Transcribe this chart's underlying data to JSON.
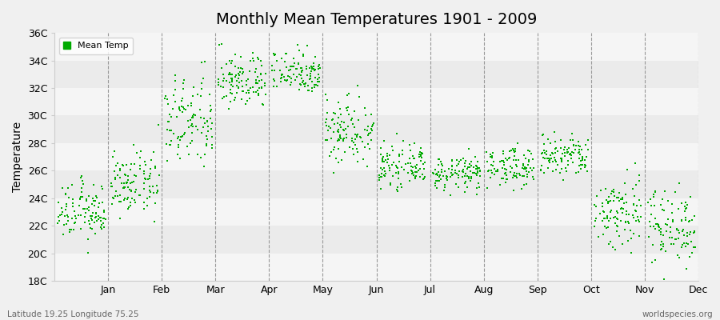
{
  "title": "Monthly Mean Temperatures 1901 - 2009",
  "ylabel": "Temperature",
  "background_color": "#f0f0f0",
  "plot_bg_color": "#f0f0f0",
  "dot_color": "#00aa00",
  "dot_size": 4,
  "ylim": [
    18,
    36
  ],
  "ytick_labels": [
    "18C",
    "20C",
    "22C",
    "24C",
    "26C",
    "28C",
    "30C",
    "32C",
    "34C",
    "36C"
  ],
  "ytick_values": [
    18,
    20,
    22,
    24,
    26,
    28,
    30,
    32,
    34,
    36
  ],
  "months": [
    "Jan",
    "Feb",
    "Mar",
    "Apr",
    "May",
    "Jun",
    "Jul",
    "Aug",
    "Sep",
    "Oct",
    "Nov",
    "Dec"
  ],
  "month_means": [
    23.0,
    25.0,
    29.5,
    32.5,
    33.2,
    29.0,
    26.3,
    25.8,
    26.3,
    27.0,
    23.0,
    22.0
  ],
  "month_stds": [
    1.0,
    1.1,
    1.7,
    1.0,
    0.8,
    1.3,
    0.7,
    0.6,
    0.7,
    0.8,
    1.4,
    1.4
  ],
  "n_years": 109,
  "footer_left": "Latitude 19.25 Longitude 75.25",
  "footer_right": "worldspecies.org",
  "legend_label": "Mean Temp",
  "band_colors": [
    "#f5f5f5",
    "#ebebeb"
  ],
  "dashed_color": "#999999",
  "title_fontsize": 14,
  "axis_label_fontsize": 9,
  "ylabel_fontsize": 10
}
